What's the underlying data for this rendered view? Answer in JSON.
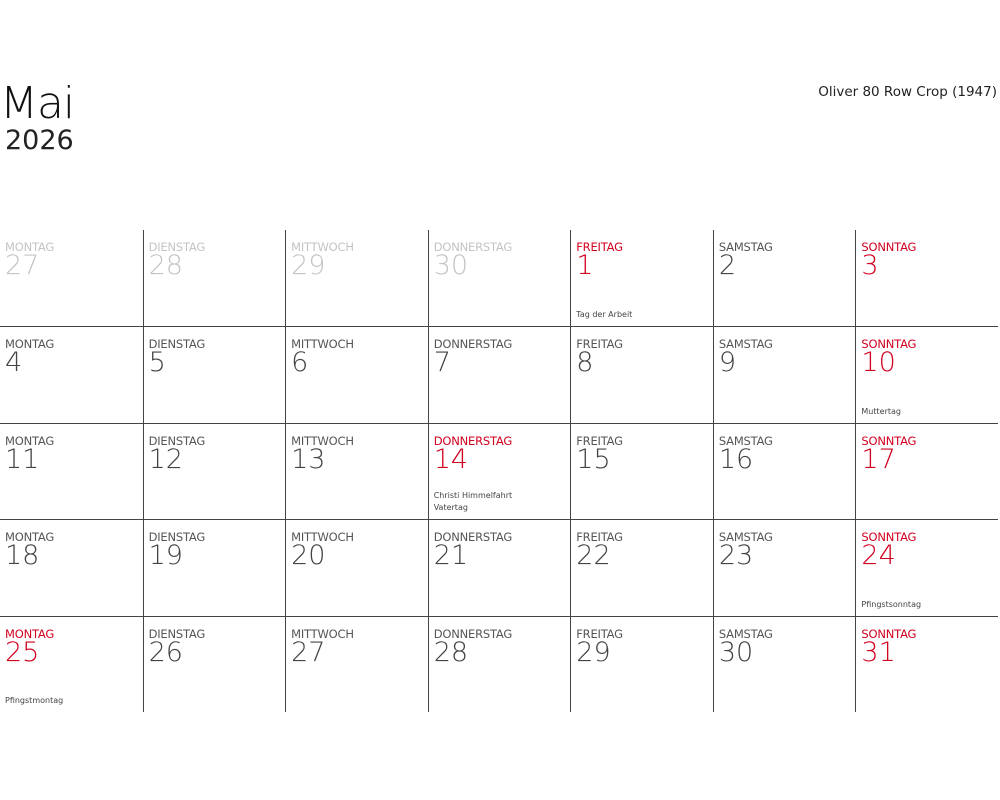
{
  "header": {
    "month": "Mai",
    "year": "2026",
    "caption": "Oliver 80 Row Crop (1947)"
  },
  "colors": {
    "holiday": "#d1001f",
    "text": "#444444",
    "other_month": "#c4c4c4"
  },
  "weekdays": [
    "MONTAG",
    "DIENSTAG",
    "MITTWOCH",
    "DONNERSTAG",
    "FREITAG",
    "SAMSTAG",
    "SONNTAG"
  ],
  "weeks": [
    [
      {
        "day": "27",
        "other": true
      },
      {
        "day": "28",
        "other": true
      },
      {
        "day": "29",
        "other": true
      },
      {
        "day": "30",
        "other": true
      },
      {
        "day": "1",
        "red": true,
        "notes": [
          "Tag der Arbeit"
        ]
      },
      {
        "day": "2"
      },
      {
        "day": "3",
        "red": true
      }
    ],
    [
      {
        "day": "4"
      },
      {
        "day": "5"
      },
      {
        "day": "6"
      },
      {
        "day": "7"
      },
      {
        "day": "8"
      },
      {
        "day": "9"
      },
      {
        "day": "10",
        "red": true,
        "notes": [
          "Muttertag"
        ]
      }
    ],
    [
      {
        "day": "11"
      },
      {
        "day": "12"
      },
      {
        "day": "13"
      },
      {
        "day": "14",
        "red": true,
        "notes": [
          "Christi Himmelfahrt",
          "Vatertag"
        ]
      },
      {
        "day": "15"
      },
      {
        "day": "16"
      },
      {
        "day": "17",
        "red": true
      }
    ],
    [
      {
        "day": "18"
      },
      {
        "day": "19"
      },
      {
        "day": "20"
      },
      {
        "day": "21"
      },
      {
        "day": "22"
      },
      {
        "day": "23"
      },
      {
        "day": "24",
        "red": true,
        "notes": [
          "Pfingstsonntag"
        ]
      }
    ],
    [
      {
        "day": "25",
        "red": true,
        "notes": [
          "Pfingstmontag"
        ]
      },
      {
        "day": "26"
      },
      {
        "day": "27"
      },
      {
        "day": "28"
      },
      {
        "day": "29"
      },
      {
        "day": "30"
      },
      {
        "day": "31",
        "red": true
      }
    ]
  ]
}
